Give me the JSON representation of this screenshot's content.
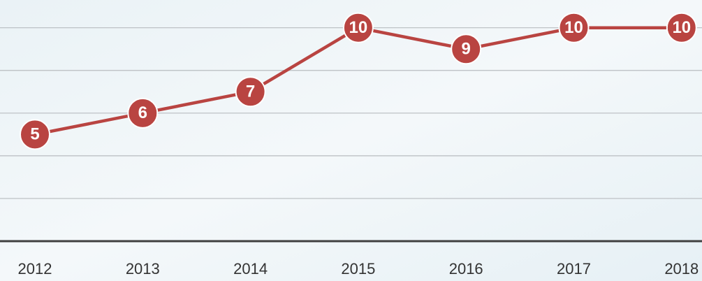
{
  "chart_data": {
    "type": "line",
    "categories": [
      "2012",
      "2013",
      "2014",
      "2015",
      "2016",
      "2017",
      "2018"
    ],
    "series": [
      {
        "name": null,
        "color": "#b94441",
        "values": [
          5,
          6,
          7,
          10,
          9,
          10,
          10
        ]
      }
    ],
    "ylim": [
      0,
      11.3
    ],
    "yticks": [
      0,
      2,
      4,
      6,
      8,
      10
    ],
    "grid": true
  }
}
